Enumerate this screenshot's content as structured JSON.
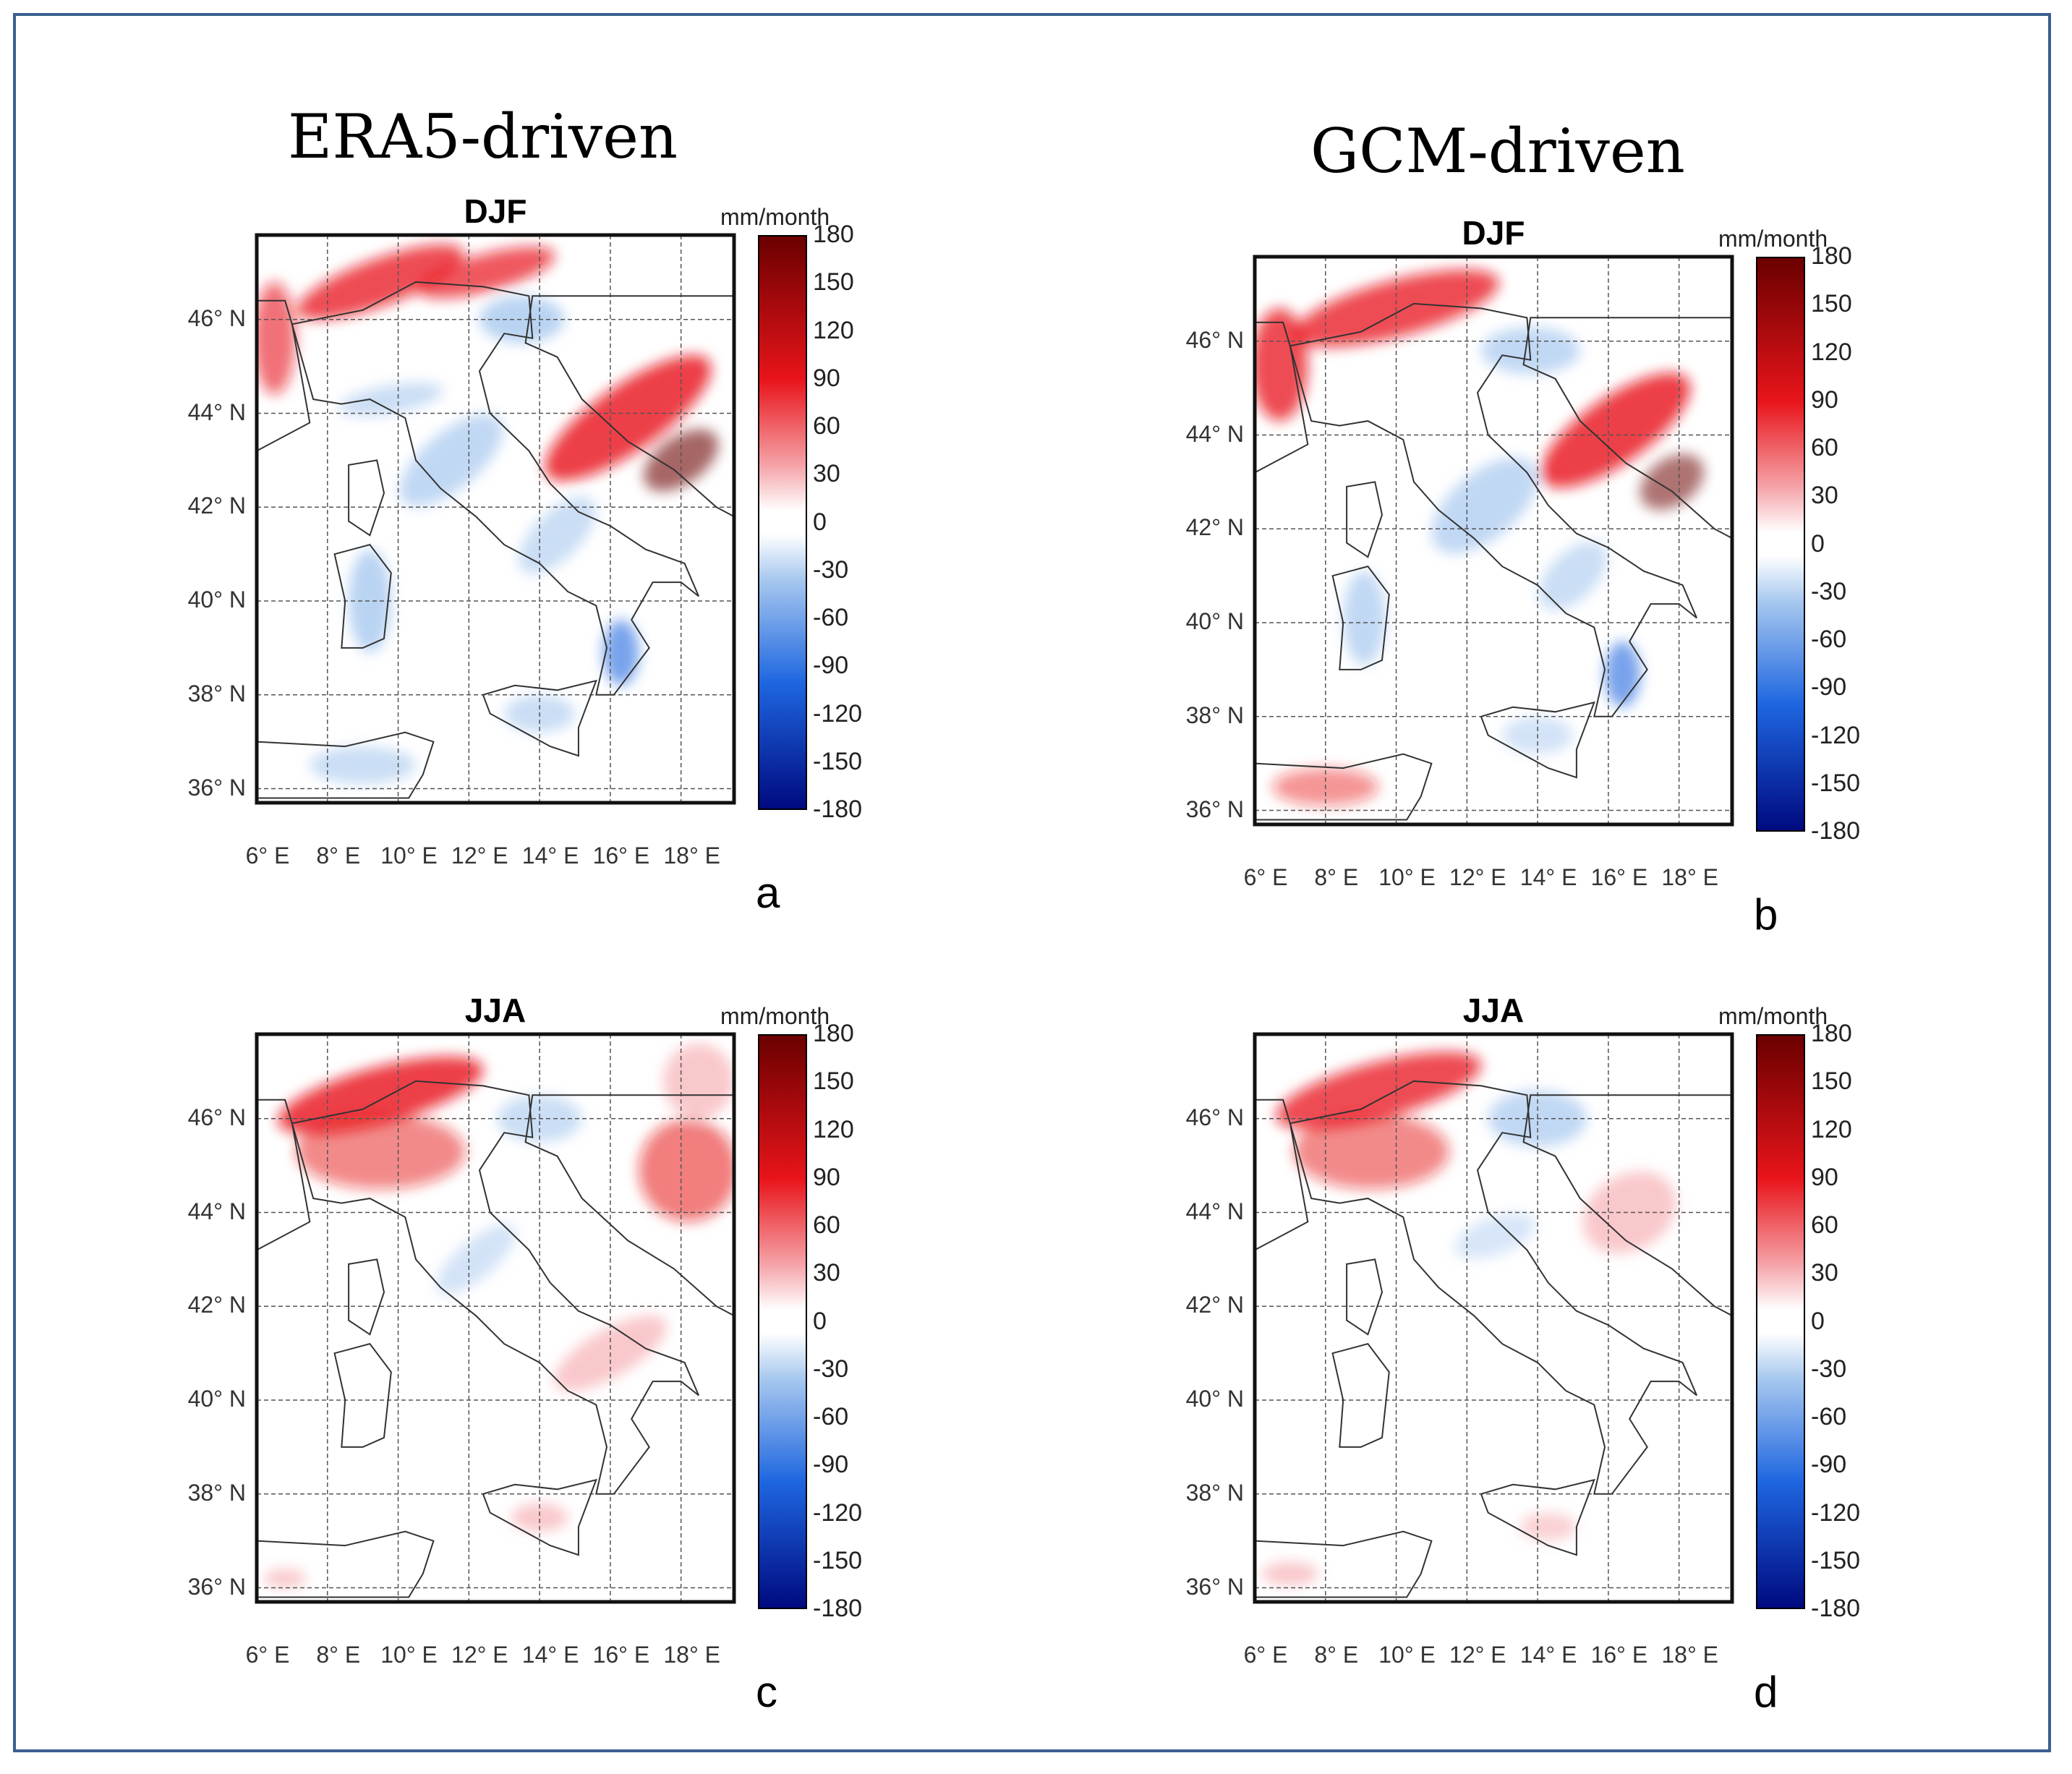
{
  "column_titles": [
    "ERA5-driven",
    "GCM-driven"
  ],
  "colorbar": {
    "unit": "mm/month",
    "ticks": [
      "180",
      "150",
      "120",
      "90",
      "60",
      "30",
      "0",
      "-30",
      "-60",
      "-90",
      "-120",
      "-150",
      "-180"
    ],
    "range": [
      -180,
      180
    ],
    "colors": {
      "max": "#6b0000",
      "high": "#e8141a",
      "mid_pos": "#f5a3a8",
      "zero": "#ffffff",
      "mid_neg": "#a7c8ef",
      "low": "#1e66e0",
      "min": "#000a80"
    }
  },
  "lat_labels": [
    "46° N",
    "44° N",
    "42° N",
    "40° N",
    "38° N",
    "36° N"
  ],
  "lon_labels": [
    "6° E",
    "8° E",
    "10° E",
    "12° E",
    "14° E",
    "16° E",
    "18° E"
  ],
  "panels": [
    {
      "id": "a",
      "season": "DJF",
      "label": "a"
    },
    {
      "id": "b",
      "season": "DJF",
      "label": "b"
    },
    {
      "id": "c",
      "season": "JJA",
      "label": "c"
    },
    {
      "id": "d",
      "season": "JJA",
      "label": "d"
    }
  ]
}
